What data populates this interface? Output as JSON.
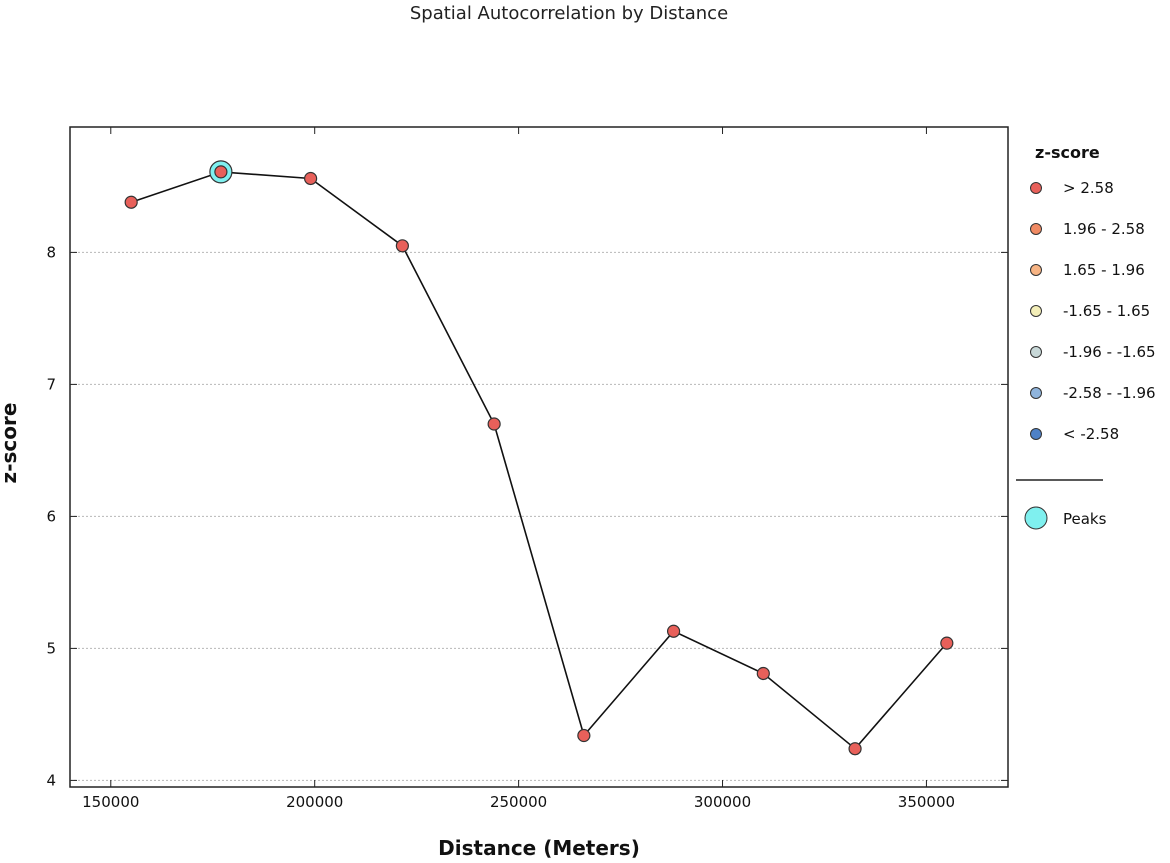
{
  "chart_data": {
    "type": "line",
    "title": "Spatial Autocorrelation by Distance",
    "xlabel": "Distance (Meters)",
    "ylabel": "z-score",
    "xlim": [
      140000,
      370000
    ],
    "ylim": [
      3.95,
      8.95
    ],
    "xticks": [
      150000,
      200000,
      250000,
      300000,
      350000
    ],
    "yticks": [
      4,
      5,
      6,
      7,
      8
    ],
    "grid": "horizontal dotted",
    "legend_position": "right",
    "series": [
      {
        "x": [
          155000,
          177000,
          199000,
          221500,
          244000,
          266000,
          288000,
          310000,
          332500,
          355000
        ],
        "y": [
          8.38,
          8.61,
          8.56,
          8.05,
          6.7,
          4.34,
          5.13,
          4.81,
          4.24,
          5.04
        ],
        "color": "#e8605a"
      }
    ],
    "peaks": [
      {
        "x": 177000,
        "y": 8.61
      }
    ],
    "legend": {
      "title": "z-score",
      "items": [
        {
          "label": "> 2.58",
          "color": "#e8605a"
        },
        {
          "label": "1.96 - 2.58",
          "color": "#f08a63"
        },
        {
          "label": "1.65 - 1.96",
          "color": "#f7b484"
        },
        {
          "label": "-1.65 - 1.65",
          "color": "#f3eeb8"
        },
        {
          "label": "-1.96 - -1.65",
          "color": "#c8d8d8"
        },
        {
          "label": "-2.58 - -1.96",
          "color": "#8fb4dc"
        },
        {
          "label": "< -2.58",
          "color": "#4f81c6"
        }
      ],
      "peaks_label": "Peaks",
      "peaks_color": "#7ff0ef"
    }
  }
}
